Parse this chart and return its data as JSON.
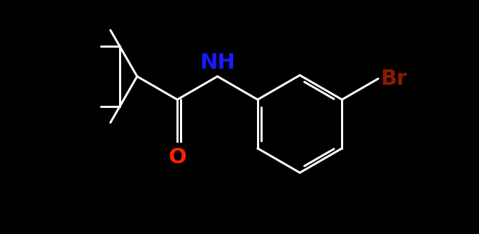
{
  "background_color": "#000000",
  "bond_color": "#ffffff",
  "N_color": "#1a1aff",
  "O_color": "#ff2200",
  "Br_color": "#8b1a00",
  "bond_width": 2.2,
  "font_size_NH": 22,
  "font_size_O": 22,
  "font_size_Br": 22,
  "NH_label": "NH",
  "O_label": "O",
  "Br_label": "Br",
  "xlim": [
    0,
    10
  ],
  "ylim": [
    0,
    5
  ],
  "figsize": [
    6.84,
    3.34
  ],
  "dpi": 100
}
